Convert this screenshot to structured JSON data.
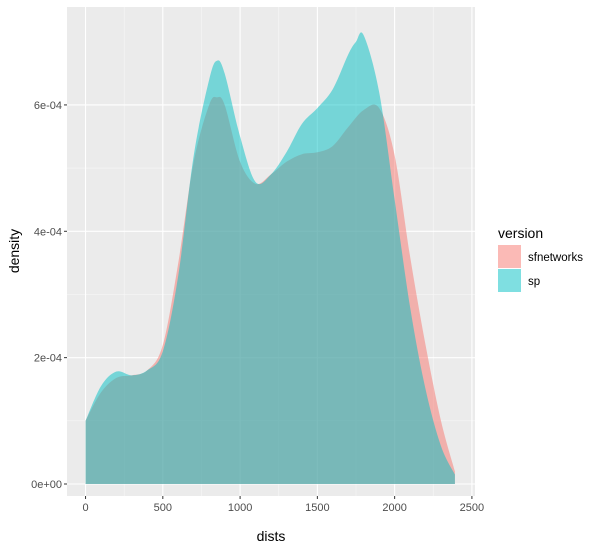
{
  "chart_data": {
    "type": "area",
    "xlabel": "dists",
    "ylabel": "density",
    "xlim": [
      -120,
      2520
    ],
    "ylim": [
      -1.9e-05,
      0.000755
    ],
    "x_ticks": [
      {
        "value": 0,
        "label": "0"
      },
      {
        "value": 500,
        "label": "500"
      },
      {
        "value": 1000,
        "label": "1000"
      },
      {
        "value": 1500,
        "label": "1500"
      },
      {
        "value": 2000,
        "label": "2000"
      },
      {
        "value": 2500,
        "label": "2500"
      }
    ],
    "y_ticks": [
      {
        "value": 0,
        "label": "0e+00"
      },
      {
        "value": 0.0002,
        "label": "2e-04"
      },
      {
        "value": 0.0004,
        "label": "4e-04"
      },
      {
        "value": 0.0006,
        "label": "6e-04"
      }
    ],
    "grid": true,
    "legend": {
      "title": "version",
      "placement": "right",
      "entries": [
        "sfnetworks",
        "sp"
      ]
    },
    "series": [
      {
        "name": "sfnetworks",
        "color": "#F8766D",
        "x": [
          0,
          100,
          200,
          300,
          400,
          500,
          600,
          700,
          800,
          850,
          900,
          1000,
          1100,
          1200,
          1300,
          1400,
          1500,
          1600,
          1700,
          1800,
          1900,
          2000,
          2100,
          2200,
          2300,
          2390
        ],
        "y": [
          0.0001,
          0.000145,
          0.000168,
          0.000172,
          0.00018,
          0.00022,
          0.00035,
          0.00051,
          0.0006,
          0.000612,
          0.0006,
          0.00051,
          0.000475,
          0.00049,
          0.00051,
          0.000522,
          0.000525,
          0.000535,
          0.000565,
          0.000592,
          0.000595,
          0.00052,
          0.00036,
          0.00022,
          0.0001,
          2e-05
        ]
      },
      {
        "name": "sp",
        "color": "#00BFC4",
        "x": [
          0,
          100,
          200,
          300,
          400,
          500,
          600,
          700,
          800,
          850,
          900,
          1000,
          1100,
          1200,
          1300,
          1400,
          1500,
          1600,
          1700,
          1750,
          1800,
          1900,
          2000,
          2100,
          2200,
          2300,
          2390
        ],
        "y": [
          0.0001,
          0.000155,
          0.000178,
          0.000172,
          0.00018,
          0.00021,
          0.00033,
          0.00052,
          0.00064,
          0.00067,
          0.00065,
          0.00055,
          0.000478,
          0.00049,
          0.000525,
          0.00057,
          0.000595,
          0.000625,
          0.00068,
          0.0007,
          0.00071,
          0.00062,
          0.00045,
          0.00028,
          0.00015,
          6e-05,
          1.5e-05
        ]
      }
    ]
  }
}
